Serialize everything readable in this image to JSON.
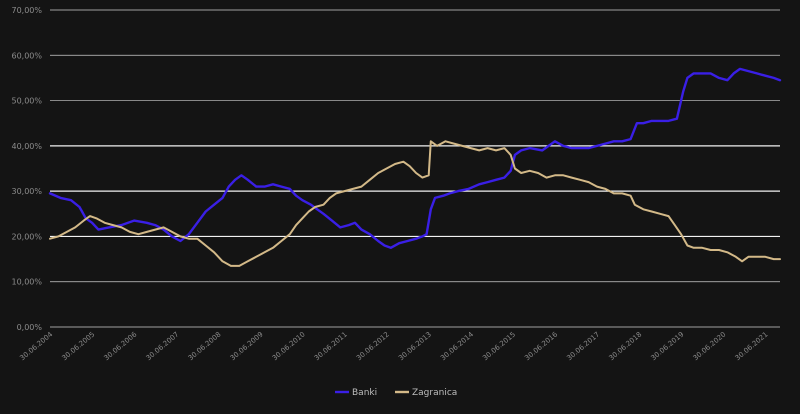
{
  "chart_data": {
    "type": "line",
    "title": "",
    "xlabel": "",
    "ylabel": "",
    "ylim": [
      0,
      70
    ],
    "y_ticks": [
      "0,00%",
      "10,00%",
      "20,00%",
      "30,00%",
      "40,00%",
      "50,00%",
      "60,00%",
      "70,00%"
    ],
    "x_ticks": [
      "30.06.2004",
      "30.06.2005",
      "30.06.2006",
      "30.06.2007",
      "30.06.2008",
      "30.06.2009",
      "30.06.2010",
      "30.06.2011",
      "30.06.2012",
      "30.06.2013",
      "30.06.2014",
      "30.06.2015",
      "30.06.2016",
      "30.06.2017",
      "30.06.2018",
      "30.06.2019",
      "30.06.2020",
      "30.06.2021"
    ],
    "x_range": [
      2004.5,
      2021.85
    ],
    "grid": "horizontal",
    "legend": "bottom-center",
    "series": [
      {
        "name": "Banki",
        "color": "#3a1fe6",
        "points": [
          [
            2004.5,
            29.5
          ],
          [
            2004.75,
            28.5
          ],
          [
            2005.0,
            28.0
          ],
          [
            2005.2,
            26.5
          ],
          [
            2005.35,
            24.0
          ],
          [
            2005.5,
            23.0
          ],
          [
            2005.65,
            21.5
          ],
          [
            2005.9,
            22.0
          ],
          [
            2006.2,
            22.5
          ],
          [
            2006.5,
            23.5
          ],
          [
            2006.8,
            23.0
          ],
          [
            2007.0,
            22.5
          ],
          [
            2007.2,
            21.5
          ],
          [
            2007.4,
            20.0
          ],
          [
            2007.6,
            19.0
          ],
          [
            2007.8,
            20.5
          ],
          [
            2008.0,
            23.0
          ],
          [
            2008.2,
            25.5
          ],
          [
            2008.4,
            27.0
          ],
          [
            2008.6,
            28.5
          ],
          [
            2008.75,
            31.0
          ],
          [
            2008.9,
            32.5
          ],
          [
            2009.05,
            33.5
          ],
          [
            2009.2,
            32.5
          ],
          [
            2009.4,
            31.0
          ],
          [
            2009.6,
            31.0
          ],
          [
            2009.8,
            31.5
          ],
          [
            2010.0,
            31.0
          ],
          [
            2010.2,
            30.5
          ],
          [
            2010.35,
            29.0
          ],
          [
            2010.5,
            28.0
          ],
          [
            2010.7,
            27.0
          ],
          [
            2010.85,
            26.0
          ],
          [
            2011.0,
            25.0
          ],
          [
            2011.2,
            23.5
          ],
          [
            2011.4,
            22.0
          ],
          [
            2011.6,
            22.5
          ],
          [
            2011.75,
            23.0
          ],
          [
            2011.9,
            21.5
          ],
          [
            2012.1,
            20.5
          ],
          [
            2012.3,
            19.0
          ],
          [
            2012.45,
            18.0
          ],
          [
            2012.6,
            17.5
          ],
          [
            2012.8,
            18.5
          ],
          [
            2013.0,
            19.0
          ],
          [
            2013.2,
            19.5
          ],
          [
            2013.35,
            20.0
          ],
          [
            2013.45,
            20.5
          ],
          [
            2013.55,
            26.0
          ],
          [
            2013.65,
            28.5
          ],
          [
            2013.85,
            29.0
          ],
          [
            2014.0,
            29.5
          ],
          [
            2014.2,
            30.0
          ],
          [
            2014.45,
            30.5
          ],
          [
            2014.7,
            31.5
          ],
          [
            2014.9,
            32.0
          ],
          [
            2015.1,
            32.5
          ],
          [
            2015.3,
            33.0
          ],
          [
            2015.45,
            34.5
          ],
          [
            2015.55,
            38.0
          ],
          [
            2015.7,
            39.0
          ],
          [
            2015.9,
            39.5
          ],
          [
            2016.2,
            39.0
          ],
          [
            2016.35,
            40.0
          ],
          [
            2016.5,
            41.0
          ],
          [
            2016.7,
            40.0
          ],
          [
            2016.9,
            39.5
          ],
          [
            2017.1,
            39.5
          ],
          [
            2017.3,
            39.5
          ],
          [
            2017.5,
            40.0
          ],
          [
            2017.7,
            40.5
          ],
          [
            2017.9,
            41.0
          ],
          [
            2018.1,
            41.0
          ],
          [
            2018.3,
            41.5
          ],
          [
            2018.45,
            45.0
          ],
          [
            2018.6,
            45.0
          ],
          [
            2018.8,
            45.5
          ],
          [
            2019.0,
            45.5
          ],
          [
            2019.2,
            45.5
          ],
          [
            2019.4,
            46.0
          ],
          [
            2019.55,
            52.0
          ],
          [
            2019.65,
            55.0
          ],
          [
            2019.8,
            56.0
          ],
          [
            2020.0,
            56.0
          ],
          [
            2020.2,
            56.0
          ],
          [
            2020.4,
            55.0
          ],
          [
            2020.6,
            54.5
          ],
          [
            2020.75,
            56.0
          ],
          [
            2020.9,
            57.0
          ],
          [
            2021.1,
            56.5
          ],
          [
            2021.3,
            56.0
          ],
          [
            2021.5,
            55.5
          ],
          [
            2021.7,
            55.0
          ],
          [
            2021.85,
            54.5
          ]
        ]
      },
      {
        "name": "Zagranica",
        "color": "#d3b988",
        "points": [
          [
            2004.5,
            19.5
          ],
          [
            2004.7,
            20.0
          ],
          [
            2004.9,
            21.0
          ],
          [
            2005.1,
            22.0
          ],
          [
            2005.3,
            23.5
          ],
          [
            2005.45,
            24.5
          ],
          [
            2005.6,
            24.0
          ],
          [
            2005.8,
            23.0
          ],
          [
            2006.0,
            22.5
          ],
          [
            2006.2,
            22.0
          ],
          [
            2006.4,
            21.0
          ],
          [
            2006.6,
            20.5
          ],
          [
            2006.8,
            21.0
          ],
          [
            2007.0,
            21.5
          ],
          [
            2007.2,
            22.0
          ],
          [
            2007.4,
            21.0
          ],
          [
            2007.6,
            20.0
          ],
          [
            2007.8,
            19.5
          ],
          [
            2008.0,
            19.5
          ],
          [
            2008.2,
            18.0
          ],
          [
            2008.4,
            16.5
          ],
          [
            2008.6,
            14.5
          ],
          [
            2008.8,
            13.5
          ],
          [
            2009.0,
            13.5
          ],
          [
            2009.2,
            14.5
          ],
          [
            2009.4,
            15.5
          ],
          [
            2009.6,
            16.5
          ],
          [
            2009.8,
            17.5
          ],
          [
            2010.0,
            19.0
          ],
          [
            2010.2,
            20.5
          ],
          [
            2010.35,
            22.5
          ],
          [
            2010.5,
            24.0
          ],
          [
            2010.65,
            25.5
          ],
          [
            2010.8,
            26.5
          ],
          [
            2011.0,
            27.0
          ],
          [
            2011.15,
            28.5
          ],
          [
            2011.3,
            29.5
          ],
          [
            2011.5,
            30.0
          ],
          [
            2011.7,
            30.5
          ],
          [
            2011.9,
            31.0
          ],
          [
            2012.1,
            32.5
          ],
          [
            2012.3,
            34.0
          ],
          [
            2012.5,
            35.0
          ],
          [
            2012.7,
            36.0
          ],
          [
            2012.9,
            36.5
          ],
          [
            2013.05,
            35.5
          ],
          [
            2013.2,
            34.0
          ],
          [
            2013.35,
            33.0
          ],
          [
            2013.5,
            33.5
          ],
          [
            2013.55,
            41.0
          ],
          [
            2013.7,
            40.0
          ],
          [
            2013.9,
            41.0
          ],
          [
            2014.1,
            40.5
          ],
          [
            2014.3,
            40.0
          ],
          [
            2014.5,
            39.5
          ],
          [
            2014.7,
            39.0
          ],
          [
            2014.9,
            39.5
          ],
          [
            2015.1,
            39.0
          ],
          [
            2015.3,
            39.5
          ],
          [
            2015.45,
            38.0
          ],
          [
            2015.55,
            35.0
          ],
          [
            2015.7,
            34.0
          ],
          [
            2015.9,
            34.5
          ],
          [
            2016.1,
            34.0
          ],
          [
            2016.3,
            33.0
          ],
          [
            2016.5,
            33.5
          ],
          [
            2016.7,
            33.5
          ],
          [
            2016.9,
            33.0
          ],
          [
            2017.1,
            32.5
          ],
          [
            2017.3,
            32.0
          ],
          [
            2017.5,
            31.0
          ],
          [
            2017.7,
            30.5
          ],
          [
            2017.9,
            29.5
          ],
          [
            2018.1,
            29.5
          ],
          [
            2018.3,
            29.0
          ],
          [
            2018.4,
            27.0
          ],
          [
            2018.6,
            26.0
          ],
          [
            2018.8,
            25.5
          ],
          [
            2019.0,
            25.0
          ],
          [
            2019.2,
            24.5
          ],
          [
            2019.35,
            22.5
          ],
          [
            2019.5,
            20.5
          ],
          [
            2019.65,
            18.0
          ],
          [
            2019.8,
            17.5
          ],
          [
            2020.0,
            17.5
          ],
          [
            2020.2,
            17.0
          ],
          [
            2020.4,
            17.0
          ],
          [
            2020.6,
            16.5
          ],
          [
            2020.8,
            15.5
          ],
          [
            2020.95,
            14.5
          ],
          [
            2021.1,
            15.5
          ],
          [
            2021.3,
            15.5
          ],
          [
            2021.5,
            15.5
          ],
          [
            2021.7,
            15.0
          ],
          [
            2021.85,
            15.0
          ]
        ]
      }
    ]
  }
}
